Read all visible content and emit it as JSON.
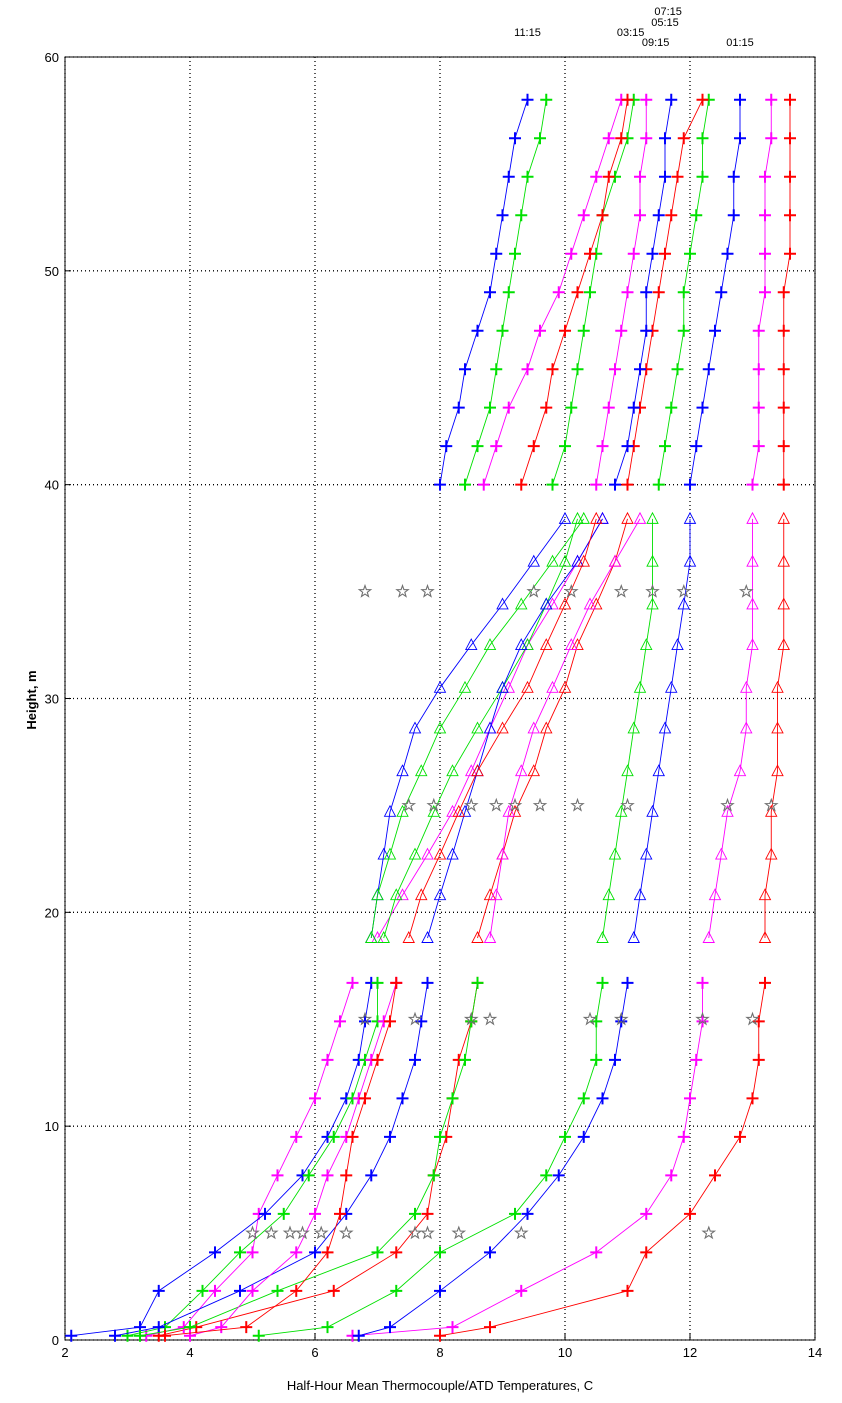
{
  "chart_data": {
    "type": "line",
    "xlabel": "Half-Hour Mean Thermocouple/ATD Temperatures, C",
    "ylabel": "Height, m",
    "xlim": [
      2,
      14
    ],
    "xticks": [
      2,
      4,
      6,
      8,
      10,
      12,
      14
    ],
    "ylim": [
      0,
      60
    ],
    "yticks": [
      0,
      10,
      20,
      30,
      40,
      50,
      60
    ],
    "grid": true,
    "segments": [
      {
        "marker": "plus",
        "y": [
          0.2,
          0.6,
          2.3,
          4.1,
          5.9,
          7.7,
          9.5,
          11.3,
          13.1,
          14.9,
          16.7
        ]
      },
      {
        "marker": "triangle",
        "y": [
          18.8,
          20.8,
          22.7,
          24.7,
          26.6,
          28.6,
          30.5,
          32.5,
          34.4,
          36.4,
          38.4
        ]
      },
      {
        "marker": "plus",
        "y": [
          40,
          41.8,
          43.6,
          45.4,
          47.2,
          49,
          50.8,
          52.6,
          54.4,
          56.2,
          58
        ]
      }
    ],
    "series": [
      {
        "color": "#ff0000",
        "values": [
          [
            8.0,
            8.8,
            11.0,
            11.3,
            12.0,
            12.4,
            12.8,
            13.0,
            13.1,
            13.1,
            13.2
          ],
          [
            13.2,
            13.2,
            13.3,
            13.3,
            13.4,
            13.4,
            13.4,
            13.5,
            13.5,
            13.5,
            13.5
          ],
          [
            13.5,
            13.5,
            13.5,
            13.5,
            13.5,
            13.5,
            13.6,
            13.6,
            13.6,
            13.6,
            13.6
          ]
        ]
      },
      {
        "color": "#ff00ff",
        "values": [
          [
            6.6,
            8.2,
            9.3,
            10.5,
            11.3,
            11.7,
            11.9,
            12.0,
            12.1,
            12.2,
            12.2
          ],
          [
            12.3,
            12.4,
            12.5,
            12.6,
            12.8,
            12.9,
            12.9,
            13.0,
            13.0,
            13.0,
            13.0
          ],
          [
            13.0,
            13.1,
            13.1,
            13.1,
            13.1,
            13.2,
            13.2,
            13.2,
            13.2,
            13.3,
            13.3
          ]
        ]
      },
      {
        "color": "#0000ff",
        "values": [
          [
            6.7,
            7.2,
            8.0,
            8.8,
            9.4,
            9.9,
            10.3,
            10.6,
            10.8,
            10.9,
            11.0
          ],
          [
            11.1,
            11.2,
            11.3,
            11.4,
            11.5,
            11.6,
            11.7,
            11.8,
            11.9,
            12.0,
            12.0
          ],
          [
            12.0,
            12.1,
            12.2,
            12.3,
            12.4,
            12.5,
            12.6,
            12.7,
            12.7,
            12.8,
            12.8
          ]
        ]
      },
      {
        "color": "#00e000",
        "values": [
          [
            5.1,
            6.2,
            7.3,
            8.0,
            9.2,
            9.7,
            10.0,
            10.3,
            10.5,
            10.5,
            10.6
          ],
          [
            10.6,
            10.7,
            10.8,
            10.9,
            11.0,
            11.1,
            11.2,
            11.3,
            11.4,
            11.4,
            11.4
          ],
          [
            11.5,
            11.6,
            11.7,
            11.8,
            11.9,
            11.9,
            12.0,
            12.1,
            12.2,
            12.2,
            12.3
          ]
        ]
      },
      {
        "color": "#ff0000",
        "values": [
          [
            3.5,
            4.1,
            6.3,
            7.3,
            7.8,
            7.9,
            8.1,
            8.2,
            8.3,
            8.5,
            8.6
          ],
          [
            8.6,
            8.8,
            9.0,
            9.2,
            9.5,
            9.7,
            10.0,
            10.2,
            10.5,
            10.8,
            11.0
          ],
          [
            11.0,
            11.1,
            11.2,
            11.3,
            11.4,
            11.5,
            11.6,
            11.7,
            11.8,
            11.9,
            12.2
          ]
        ]
      },
      {
        "color": "#ff00ff",
        "values": [
          [
            3.3,
            3.9,
            4.4,
            5.0,
            5.1,
            5.4,
            5.7,
            6.0,
            6.2,
            6.4,
            6.6
          ],
          [
            7.0,
            7.4,
            7.8,
            8.2,
            8.5,
            8.8,
            9.1,
            9.4,
            9.8,
            10.2,
            10.6
          ],
          [
            10.5,
            10.6,
            10.7,
            10.8,
            10.9,
            11.0,
            11.1,
            11.2,
            11.2,
            11.3,
            11.3
          ]
        ]
      },
      {
        "color": "#0000ff",
        "values": [
          [
            2.1,
            3.2,
            3.5,
            4.4,
            5.2,
            5.8,
            6.2,
            6.5,
            6.7,
            6.8,
            6.9
          ],
          [
            6.9,
            7.0,
            7.1,
            7.2,
            7.4,
            7.6,
            8.0,
            8.5,
            9.0,
            9.5,
            10.0
          ],
          [
            10.8,
            11.0,
            11.1,
            11.2,
            11.3,
            11.3,
            11.4,
            11.5,
            11.6,
            11.6,
            11.7
          ]
        ]
      },
      {
        "color": "#00e000",
        "values": [
          [
            3.0,
            3.6,
            4.2,
            4.8,
            5.5,
            5.9,
            6.3,
            6.6,
            6.8,
            7.0,
            7.0
          ],
          [
            7.1,
            7.3,
            7.6,
            7.9,
            8.2,
            8.6,
            9.0,
            9.4,
            9.7,
            10.0,
            10.2
          ],
          [
            9.8,
            10.0,
            10.1,
            10.2,
            10.3,
            10.4,
            10.5,
            10.6,
            10.8,
            11.0,
            11.1
          ]
        ]
      },
      {
        "color": "#0000ff",
        "values": [
          [
            2.8,
            3.5,
            4.8,
            6.0,
            6.5,
            6.9,
            7.2,
            7.4,
            7.6,
            7.7,
            7.8
          ],
          [
            7.8,
            8.0,
            8.2,
            8.4,
            8.6,
            8.8,
            9.0,
            9.3,
            9.7,
            10.2,
            10.6
          ],
          [
            8.0,
            8.1,
            8.3,
            8.4,
            8.6,
            8.8,
            8.9,
            9.0,
            9.1,
            9.2,
            9.4
          ]
        ]
      },
      {
        "color": "#00e000",
        "values": [
          [
            3.2,
            4.0,
            5.4,
            7.0,
            7.6,
            7.9,
            8.0,
            8.2,
            8.4,
            8.5,
            8.6
          ],
          [
            6.9,
            7.0,
            7.2,
            7.4,
            7.7,
            8.0,
            8.4,
            8.8,
            9.3,
            9.8,
            10.3
          ],
          [
            8.4,
            8.6,
            8.8,
            8.9,
            9.0,
            9.1,
            9.2,
            9.3,
            9.4,
            9.6,
            9.7
          ]
        ]
      },
      {
        "color": "#ff00ff",
        "values": [
          [
            4.0,
            4.5,
            5.0,
            5.7,
            6.0,
            6.2,
            6.5,
            6.7,
            6.9,
            7.1,
            7.3
          ],
          [
            8.8,
            8.9,
            9.0,
            9.1,
            9.3,
            9.5,
            9.8,
            10.1,
            10.4,
            10.8,
            11.2
          ],
          [
            8.7,
            8.9,
            9.1,
            9.4,
            9.6,
            9.9,
            10.1,
            10.3,
            10.5,
            10.7,
            10.9
          ]
        ]
      },
      {
        "color": "#ff0000",
        "values": [
          [
            3.6,
            4.9,
            5.7,
            6.2,
            6.4,
            6.5,
            6.6,
            6.8,
            7.0,
            7.2,
            7.3
          ],
          [
            7.5,
            7.7,
            8.0,
            8.3,
            8.6,
            9.0,
            9.4,
            9.7,
            10.0,
            10.3,
            10.5
          ],
          [
            9.3,
            9.5,
            9.7,
            9.8,
            10.0,
            10.2,
            10.4,
            10.6,
            10.7,
            10.9,
            11.0
          ]
        ]
      }
    ],
    "stars": {
      "color": "#707070",
      "y": [
        5,
        15,
        25,
        35
      ],
      "values": [
        [
          5.0,
          5.3,
          5.6,
          5.8,
          6.1,
          6.5,
          7.6,
          7.8,
          8.3,
          9.3,
          12.3
        ],
        [
          6.8,
          7.6,
          8.5,
          8.8,
          10.4,
          10.9,
          12.2,
          13.0
        ],
        [
          7.5,
          7.9,
          8.5,
          8.9,
          9.2,
          9.6,
          10.2,
          11.0,
          12.6,
          13.3
        ],
        [
          6.8,
          7.4,
          7.8,
          9.5,
          10.1,
          10.9,
          11.4,
          11.9,
          12.9
        ]
      ]
    },
    "annotations": [
      {
        "text": "11:15",
        "x": 9.4
      },
      {
        "text": "03:15",
        "x": 11.05
      },
      {
        "text": "09:15",
        "x": 11.45
      },
      {
        "text": "05:15",
        "x": 11.6
      },
      {
        "text": "07:15",
        "x": 11.65
      },
      {
        "text": "01:15",
        "x": 12.8
      }
    ]
  }
}
